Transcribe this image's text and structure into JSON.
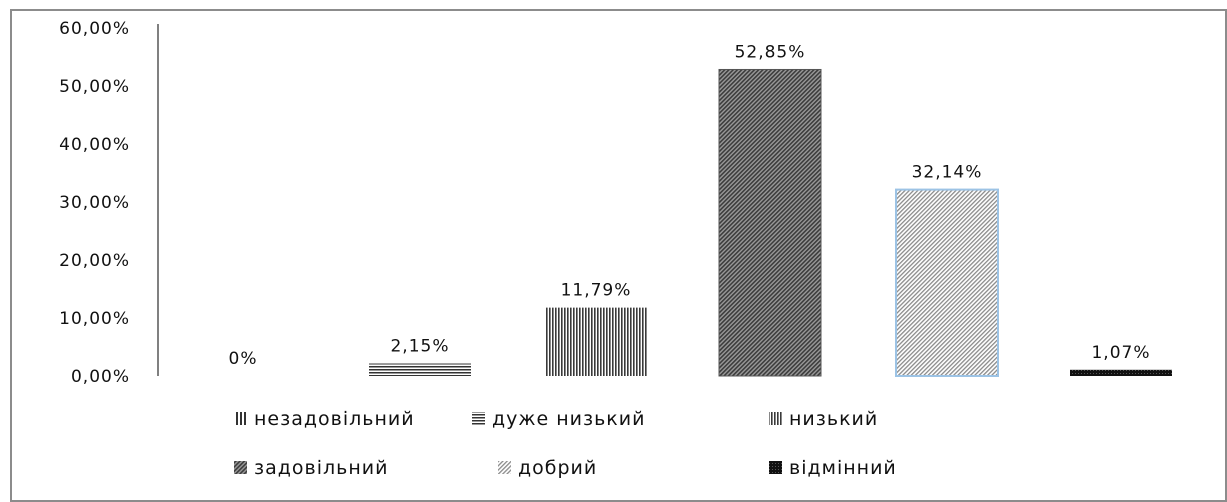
{
  "chart_data": {
    "type": "bar",
    "categories": [
      "незадовільний",
      "дуже низький",
      "низький",
      "задовільний",
      "добрий",
      "відмінний"
    ],
    "values": [
      0,
      2.15,
      11.79,
      52.85,
      32.14,
      1.07
    ],
    "data_labels": [
      "0%",
      "2,15%",
      "11,79%",
      "52,85%",
      "32,14%",
      "1,07%"
    ],
    "y_ticks": [
      "0,00%",
      "10,00%",
      "20,00%",
      "30,00%",
      "40,00%",
      "50,00%",
      "60,00%"
    ],
    "ylim": [
      0,
      60
    ],
    "grid": false,
    "legend_position": "bottom",
    "title": "",
    "xlabel": "",
    "ylabel": "",
    "patterns": [
      "vertical-lines",
      "horizontal-lines",
      "vertical-lines-dense",
      "diagonal-hatch-dark",
      "diagonal-hatch-light-blue-border",
      "solid-black-dotted"
    ],
    "colors": {
      "frame": "#8c8c8c",
      "axis": "#808080",
      "hatch_dark": "#404040",
      "hatch_light": "#7a7a7a",
      "border_blue": "#9cc3e5",
      "black": "#111111"
    }
  }
}
